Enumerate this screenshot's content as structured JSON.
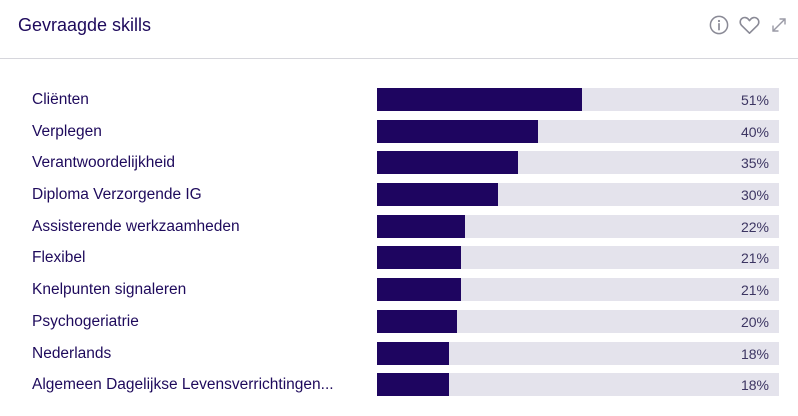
{
  "header": {
    "title": "Gevraagde skills",
    "icons": [
      "info-icon",
      "heart-icon",
      "expand-icon"
    ]
  },
  "colors": {
    "bar_fill": "#1e0560",
    "bar_track": "#e4e3ec",
    "text": "#1e0a5c",
    "icon": "#8a8a96"
  },
  "chart_data": {
    "type": "bar",
    "orientation": "horizontal",
    "categories": [
      "Cliënten",
      "Verplegen",
      "Verantwoordelijkheid",
      "Diploma Verzorgende IG",
      "Assisterende werkzaamheden",
      "Flexibel",
      "Knelpunten signaleren",
      "Psychogeriatrie",
      "Nederlands",
      "Algemeen Dagelijkse Levensverrichtingen..."
    ],
    "values": [
      51,
      40,
      35,
      30,
      22,
      21,
      21,
      20,
      18,
      18
    ],
    "value_labels": [
      "51%",
      "40%",
      "35%",
      "30%",
      "22%",
      "21%",
      "21%",
      "20%",
      "18%",
      "18%"
    ],
    "xlim": [
      0,
      100
    ]
  }
}
